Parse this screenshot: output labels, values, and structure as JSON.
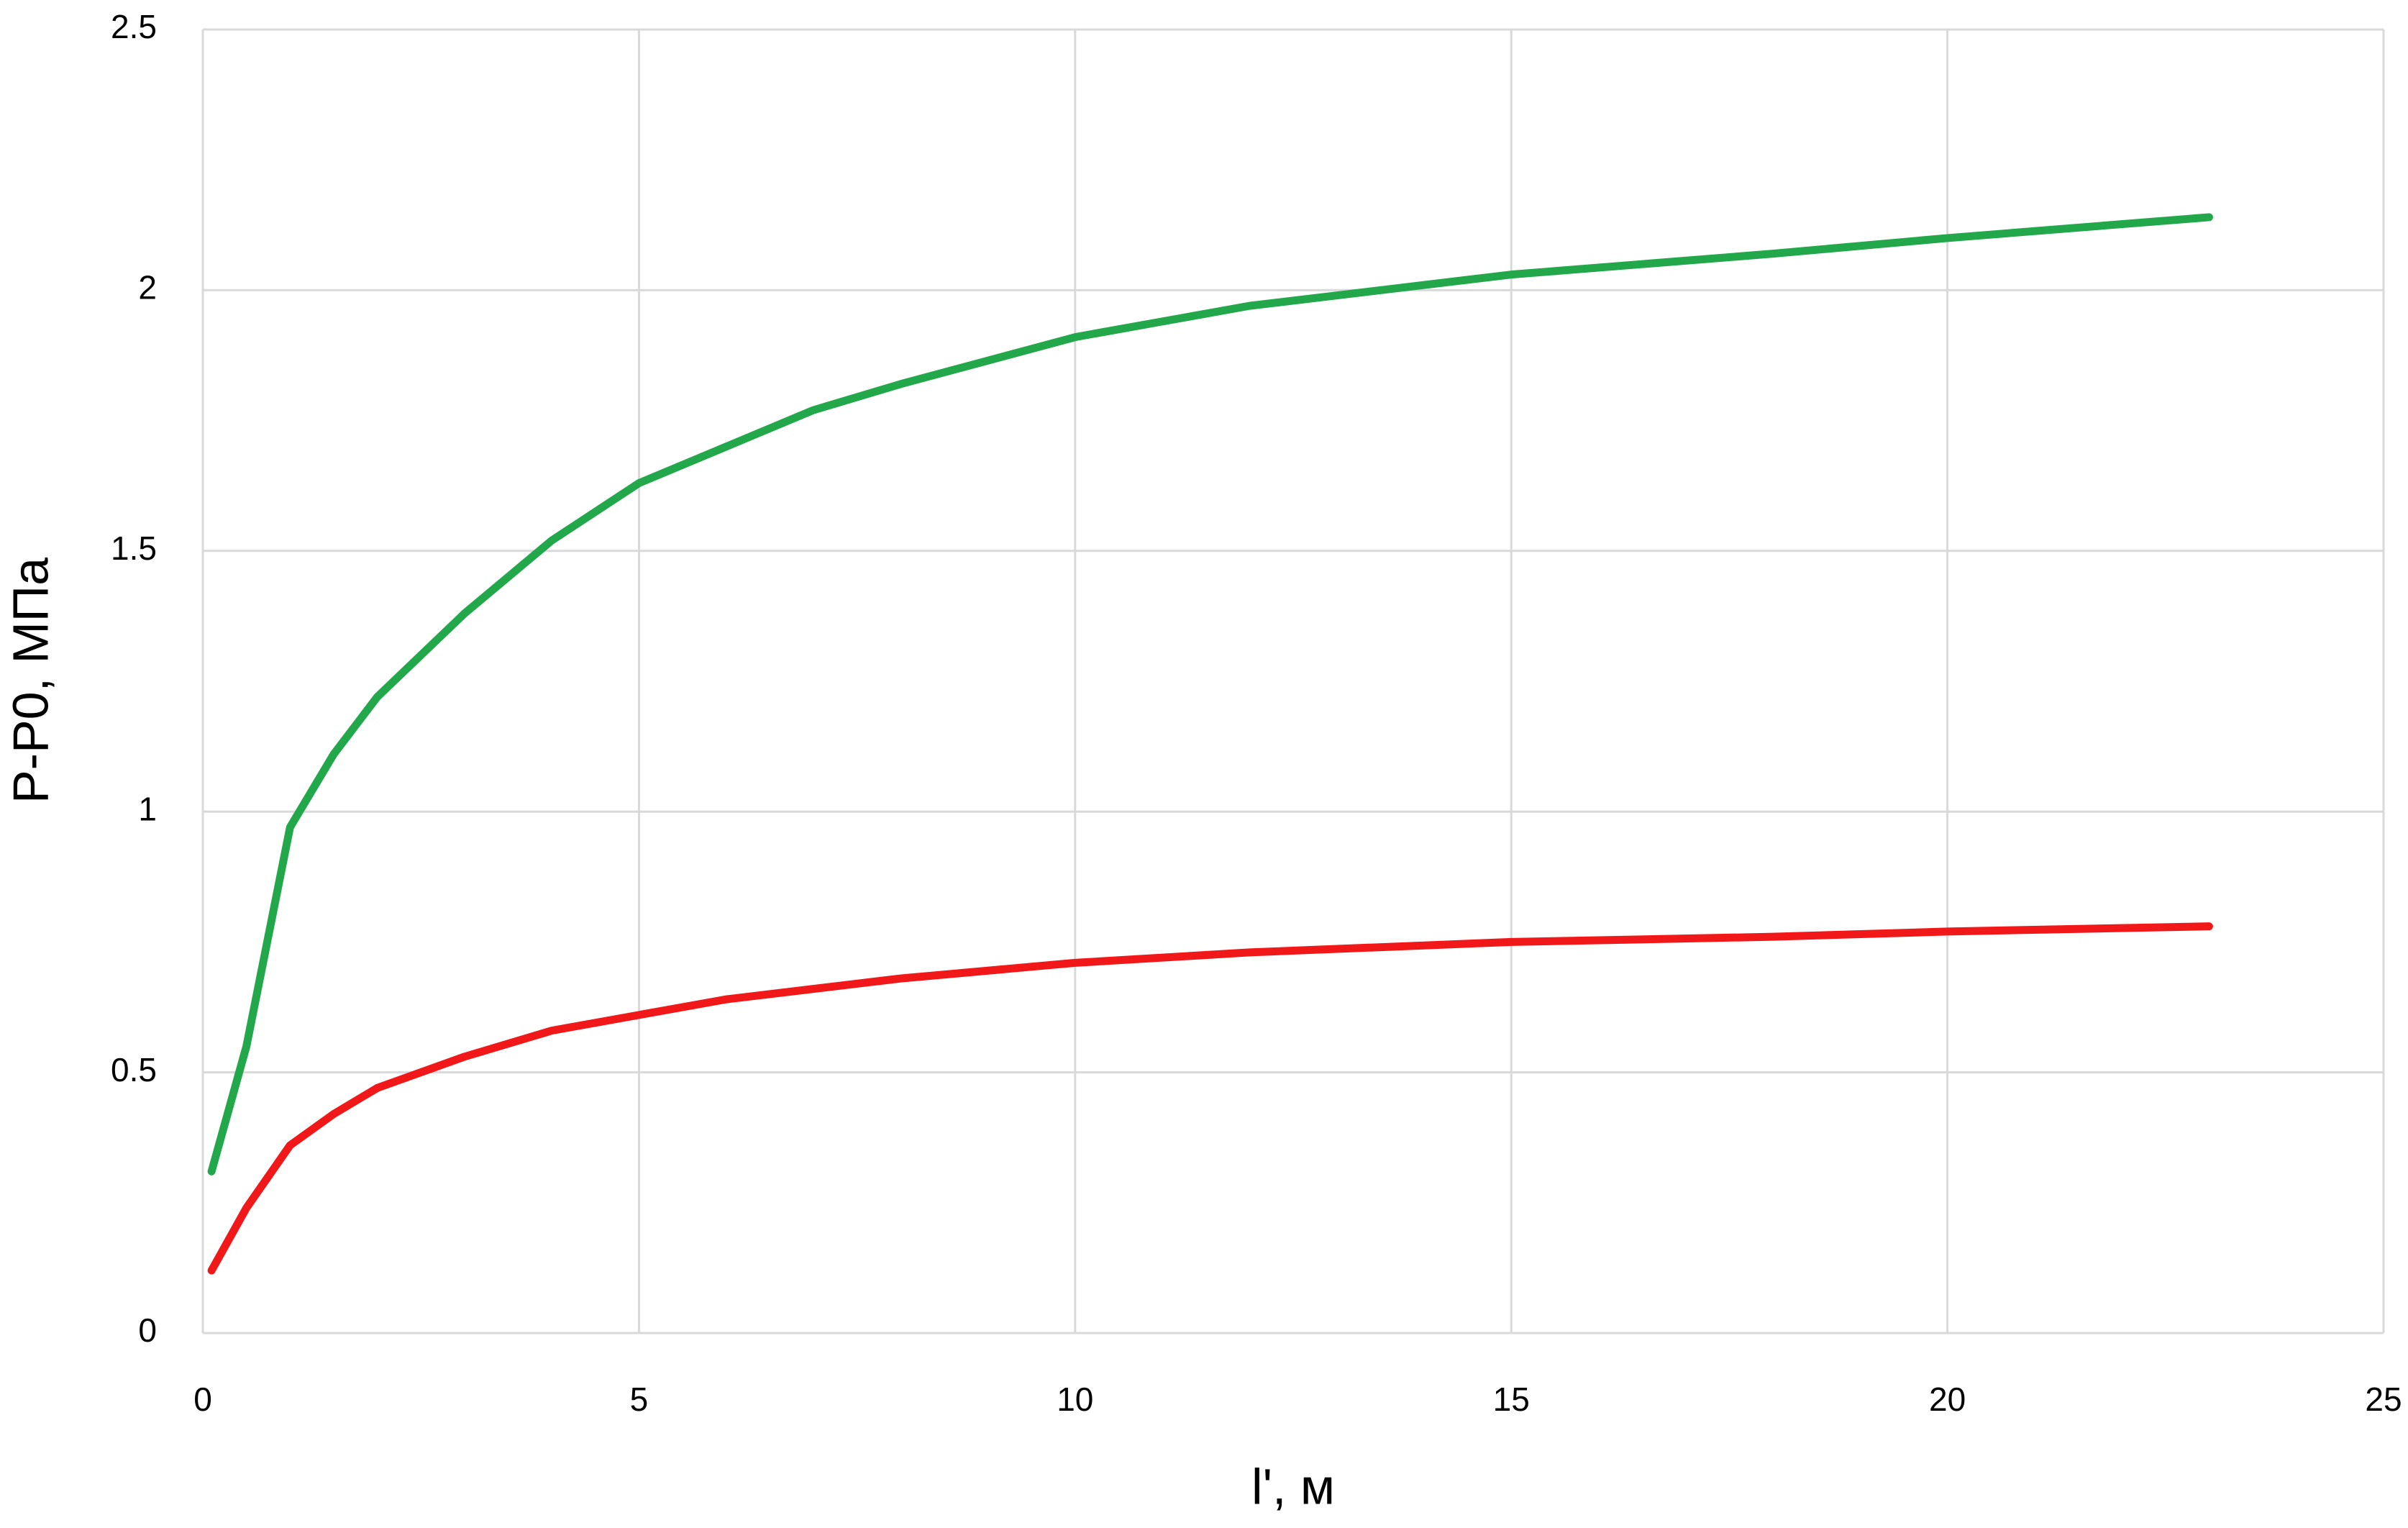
{
  "chart_data": {
    "type": "line",
    "xlabel": "l', м",
    "ylabel": "P-P0, МПа",
    "x": [
      0.1,
      0.5,
      1,
      1.5,
      2,
      3,
      4,
      5,
      6,
      7,
      8,
      10,
      12,
      15,
      18,
      20,
      23
    ],
    "series": [
      {
        "color": "#22a84a",
        "values": [
          0.31,
          0.55,
          0.97,
          1.11,
          1.22,
          1.38,
          1.52,
          1.63,
          1.7,
          1.77,
          1.82,
          1.91,
          1.97,
          2.03,
          2.07,
          2.1,
          2.14
        ]
      },
      {
        "color": "#f01818",
        "values": [
          0.12,
          0.24,
          0.36,
          0.42,
          0.47,
          0.53,
          0.58,
          0.61,
          0.64,
          0.66,
          0.68,
          0.71,
          0.73,
          0.75,
          0.76,
          0.77,
          0.78
        ]
      }
    ],
    "xlim": [
      0,
      25
    ],
    "xticks": [
      0,
      5,
      10,
      15,
      20,
      25
    ],
    "ylim": [
      0,
      2.5
    ],
    "yticks": [
      0,
      0.5,
      1,
      1.5,
      2,
      2.5
    ],
    "grid": true
  }
}
